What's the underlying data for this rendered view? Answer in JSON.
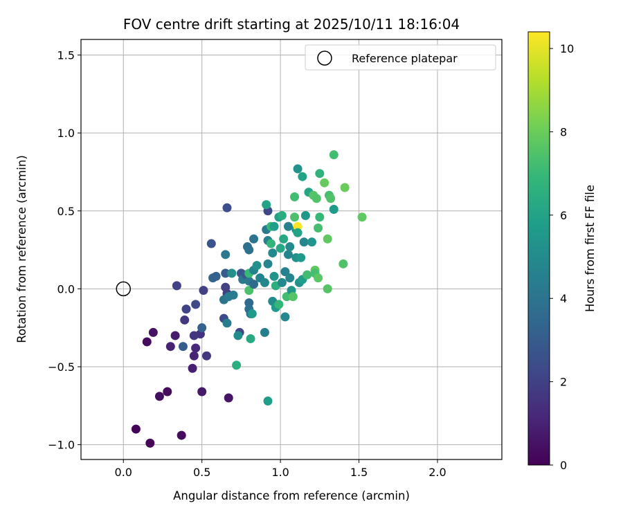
{
  "chart_data": {
    "type": "scatter",
    "title": "FOV centre drift starting at 2025/10/11 18:16:04",
    "xlabel": "Angular distance from reference (arcmin)",
    "ylabel": "Rotation from reference (arcmin)",
    "xlim": [
      -0.27,
      2.41
    ],
    "ylim": [
      -1.095,
      1.6
    ],
    "xticks": [
      0.0,
      0.5,
      1.0,
      1.5,
      2.0
    ],
    "xtick_labels": [
      "0.0",
      "0.5",
      "1.0",
      "1.5",
      "2.0"
    ],
    "yticks": [
      -1.0,
      -0.5,
      0.0,
      0.5,
      1.0,
      1.5
    ],
    "ytick_labels": [
      "−1.0",
      "−0.5",
      "0.0",
      "0.5",
      "1.0",
      "1.5"
    ],
    "grid": true,
    "legend": {
      "position": "top-right",
      "entries": [
        "Reference platepar"
      ]
    },
    "reference_point": {
      "x": 0.0,
      "y": 0.0,
      "label": "Reference platepar"
    },
    "colorbar": {
      "label": "Hours from first FF file",
      "range": [
        0,
        10.4
      ],
      "ticks": [
        0,
        2,
        4,
        6,
        8,
        10
      ],
      "tick_labels": [
        "0",
        "2",
        "4",
        "6",
        "8",
        "10"
      ],
      "colormap": "viridis",
      "colors": [
        "#440154",
        "#482878",
        "#3e4a89",
        "#31688e",
        "#26828e",
        "#1f9e89",
        "#35b779",
        "#6ece58",
        "#b5de2b",
        "#fde725"
      ]
    },
    "points": [
      {
        "x": 0.08,
        "y": -0.9,
        "h": 0.1
      },
      {
        "x": 0.17,
        "y": -0.99,
        "h": 0.1
      },
      {
        "x": 0.37,
        "y": -0.94,
        "h": 0.3
      },
      {
        "x": 0.23,
        "y": -0.69,
        "h": 0.4
      },
      {
        "x": 0.28,
        "y": -0.66,
        "h": 0.3
      },
      {
        "x": 0.15,
        "y": -0.34,
        "h": 0.3
      },
      {
        "x": 0.19,
        "y": -0.28,
        "h": 0.5
      },
      {
        "x": 0.5,
        "y": -0.66,
        "h": 0.7
      },
      {
        "x": 0.67,
        "y": -0.7,
        "h": 0.6
      },
      {
        "x": 0.3,
        "y": -0.37,
        "h": 1.0
      },
      {
        "x": 0.33,
        "y": -0.3,
        "h": 0.8
      },
      {
        "x": 0.44,
        "y": -0.51,
        "h": 0.9
      },
      {
        "x": 0.45,
        "y": -0.43,
        "h": 1.1
      },
      {
        "x": 0.46,
        "y": -0.38,
        "h": 1.2
      },
      {
        "x": 0.49,
        "y": -0.29,
        "h": 1.5
      },
      {
        "x": 0.45,
        "y": -0.3,
        "h": 1.6
      },
      {
        "x": 0.53,
        "y": -0.43,
        "h": 1.7
      },
      {
        "x": 0.39,
        "y": -0.2,
        "h": 1.7
      },
      {
        "x": 0.4,
        "y": -0.13,
        "h": 2.1
      },
      {
        "x": 0.34,
        "y": 0.02,
        "h": 2.0
      },
      {
        "x": 0.46,
        "y": -0.1,
        "h": 2.3
      },
      {
        "x": 0.51,
        "y": -0.01,
        "h": 2.0
      },
      {
        "x": 0.38,
        "y": -0.37,
        "h": 3.0
      },
      {
        "x": 0.5,
        "y": -0.25,
        "h": 3.2
      },
      {
        "x": 0.56,
        "y": 0.29,
        "h": 2.7
      },
      {
        "x": 0.66,
        "y": 0.52,
        "h": 2.5
      },
      {
        "x": 0.57,
        "y": 0.07,
        "h": 3.4
      },
      {
        "x": 0.59,
        "y": 0.08,
        "h": 3.2
      },
      {
        "x": 0.64,
        "y": -0.19,
        "h": 2.4
      },
      {
        "x": 0.65,
        "y": 0.01,
        "h": 2.0
      },
      {
        "x": 0.66,
        "y": -0.03,
        "h": 2.0
      },
      {
        "x": 0.65,
        "y": 0.1,
        "h": 3.0
      },
      {
        "x": 0.64,
        "y": -0.07,
        "h": 4.0
      },
      {
        "x": 0.67,
        "y": -0.05,
        "h": 4.3
      },
      {
        "x": 0.66,
        "y": -0.22,
        "h": 4.3
      },
      {
        "x": 0.7,
        "y": -0.04,
        "h": 4.3
      },
      {
        "x": 0.74,
        "y": -0.28,
        "h": 2.2
      },
      {
        "x": 0.75,
        "y": 0.1,
        "h": 2.8
      },
      {
        "x": 0.76,
        "y": 0.06,
        "h": 4.2
      },
      {
        "x": 0.65,
        "y": 0.22,
        "h": 4.2
      },
      {
        "x": 0.69,
        "y": 0.1,
        "h": 5.2
      },
      {
        "x": 0.73,
        "y": -0.3,
        "h": 5.0
      },
      {
        "x": 0.72,
        "y": -0.49,
        "h": 6.5
      },
      {
        "x": 0.78,
        "y": 0.09,
        "h": 3.0
      },
      {
        "x": 0.8,
        "y": -0.09,
        "h": 3.6
      },
      {
        "x": 0.8,
        "y": -0.13,
        "h": 3.8
      },
      {
        "x": 0.81,
        "y": -0.16,
        "h": 3.7
      },
      {
        "x": 0.8,
        "y": 0.05,
        "h": 4.2
      },
      {
        "x": 0.82,
        "y": -0.16,
        "h": 5.6
      },
      {
        "x": 0.81,
        "y": -0.32,
        "h": 6.3
      },
      {
        "x": 0.8,
        "y": 0.1,
        "h": 7.0
      },
      {
        "x": 0.8,
        "y": -0.01,
        "h": 7.4
      },
      {
        "x": 0.79,
        "y": 0.27,
        "h": 3.8
      },
      {
        "x": 0.8,
        "y": 0.25,
        "h": 3.9
      },
      {
        "x": 0.83,
        "y": 0.32,
        "h": 4.0
      },
      {
        "x": 0.83,
        "y": 0.03,
        "h": 3.6
      },
      {
        "x": 0.83,
        "y": 0.12,
        "h": 4.6
      },
      {
        "x": 0.85,
        "y": 0.15,
        "h": 5.2
      },
      {
        "x": 0.87,
        "y": 0.07,
        "h": 4.6
      },
      {
        "x": 0.9,
        "y": -0.28,
        "h": 4.5
      },
      {
        "x": 0.9,
        "y": 0.04,
        "h": 4.8
      },
      {
        "x": 0.91,
        "y": 0.38,
        "h": 4.2
      },
      {
        "x": 0.92,
        "y": 0.5,
        "h": 2.2
      },
      {
        "x": 0.91,
        "y": 0.54,
        "h": 6.0
      },
      {
        "x": 0.92,
        "y": 0.31,
        "h": 4.6
      },
      {
        "x": 0.92,
        "y": 0.16,
        "h": 4.7
      },
      {
        "x": 0.92,
        "y": -0.72,
        "h": 5.8
      },
      {
        "x": 0.94,
        "y": 0.29,
        "h": 6.8
      },
      {
        "x": 0.94,
        "y": 0.4,
        "h": 6.9
      },
      {
        "x": 0.95,
        "y": 0.23,
        "h": 4.9
      },
      {
        "x": 0.95,
        "y": -0.08,
        "h": 5.0
      },
      {
        "x": 0.96,
        "y": 0.08,
        "h": 5.3
      },
      {
        "x": 0.96,
        "y": 0.4,
        "h": 5.8
      },
      {
        "x": 0.97,
        "y": 0.02,
        "h": 6.5
      },
      {
        "x": 0.97,
        "y": -0.12,
        "h": 5.6
      },
      {
        "x": 0.99,
        "y": -0.1,
        "h": 6.9
      },
      {
        "x": 0.99,
        "y": 0.46,
        "h": 5.9
      },
      {
        "x": 1.0,
        "y": 0.26,
        "h": 6.2
      },
      {
        "x": 1.01,
        "y": 0.04,
        "h": 4.9
      },
      {
        "x": 1.01,
        "y": 0.47,
        "h": 6.4
      },
      {
        "x": 1.02,
        "y": 0.32,
        "h": 6.2
      },
      {
        "x": 1.03,
        "y": 0.11,
        "h": 4.6
      },
      {
        "x": 1.03,
        "y": -0.18,
        "h": 4.8
      },
      {
        "x": 1.04,
        "y": -0.05,
        "h": 7.2
      },
      {
        "x": 1.05,
        "y": 0.4,
        "h": 4.6
      },
      {
        "x": 1.05,
        "y": 0.22,
        "h": 4.7
      },
      {
        "x": 1.06,
        "y": 0.07,
        "h": 4.8
      },
      {
        "x": 1.06,
        "y": 0.27,
        "h": 4.9
      },
      {
        "x": 1.07,
        "y": -0.01,
        "h": 5.5
      },
      {
        "x": 1.08,
        "y": -0.05,
        "h": 7.6
      },
      {
        "x": 1.09,
        "y": 0.59,
        "h": 7.2
      },
      {
        "x": 1.09,
        "y": 0.46,
        "h": 7.4
      },
      {
        "x": 1.1,
        "y": 0.38,
        "h": 5.3
      },
      {
        "x": 1.1,
        "y": 0.2,
        "h": 5.2
      },
      {
        "x": 1.11,
        "y": 0.4,
        "h": 10.4
      },
      {
        "x": 1.11,
        "y": 0.36,
        "h": 6.0
      },
      {
        "x": 1.11,
        "y": 0.77,
        "h": 5.3
      },
      {
        "x": 1.12,
        "y": 0.04,
        "h": 5.2
      },
      {
        "x": 1.13,
        "y": 0.2,
        "h": 5.6
      },
      {
        "x": 1.14,
        "y": 0.72,
        "h": 6.0
      },
      {
        "x": 1.14,
        "y": 0.06,
        "h": 5.8
      },
      {
        "x": 1.15,
        "y": 0.3,
        "h": 4.8
      },
      {
        "x": 1.16,
        "y": 0.47,
        "h": 5.5
      },
      {
        "x": 1.17,
        "y": 0.09,
        "h": 7.2
      },
      {
        "x": 1.18,
        "y": 0.62,
        "h": 6.1
      },
      {
        "x": 1.2,
        "y": 0.3,
        "h": 5.4
      },
      {
        "x": 1.21,
        "y": 0.6,
        "h": 7.6
      },
      {
        "x": 1.22,
        "y": 0.12,
        "h": 7.8
      },
      {
        "x": 1.22,
        "y": 0.1,
        "h": 7.3
      },
      {
        "x": 1.23,
        "y": 0.58,
        "h": 7.5
      },
      {
        "x": 1.24,
        "y": 0.07,
        "h": 7.7
      },
      {
        "x": 1.24,
        "y": 0.39,
        "h": 7.3
      },
      {
        "x": 1.25,
        "y": 0.46,
        "h": 7.0
      },
      {
        "x": 1.25,
        "y": 0.74,
        "h": 6.7
      },
      {
        "x": 1.28,
        "y": 0.68,
        "h": 7.9
      },
      {
        "x": 1.3,
        "y": 0.32,
        "h": 7.8
      },
      {
        "x": 1.3,
        "y": 0.0,
        "h": 7.6
      },
      {
        "x": 1.31,
        "y": 0.6,
        "h": 7.3
      },
      {
        "x": 1.32,
        "y": 0.58,
        "h": 7.5
      },
      {
        "x": 1.34,
        "y": 0.86,
        "h": 7.2
      },
      {
        "x": 1.34,
        "y": 0.51,
        "h": 5.7
      },
      {
        "x": 1.4,
        "y": 0.16,
        "h": 7.5
      },
      {
        "x": 1.41,
        "y": 0.65,
        "h": 8.0
      },
      {
        "x": 1.52,
        "y": 0.46,
        "h": 7.8
      }
    ]
  }
}
